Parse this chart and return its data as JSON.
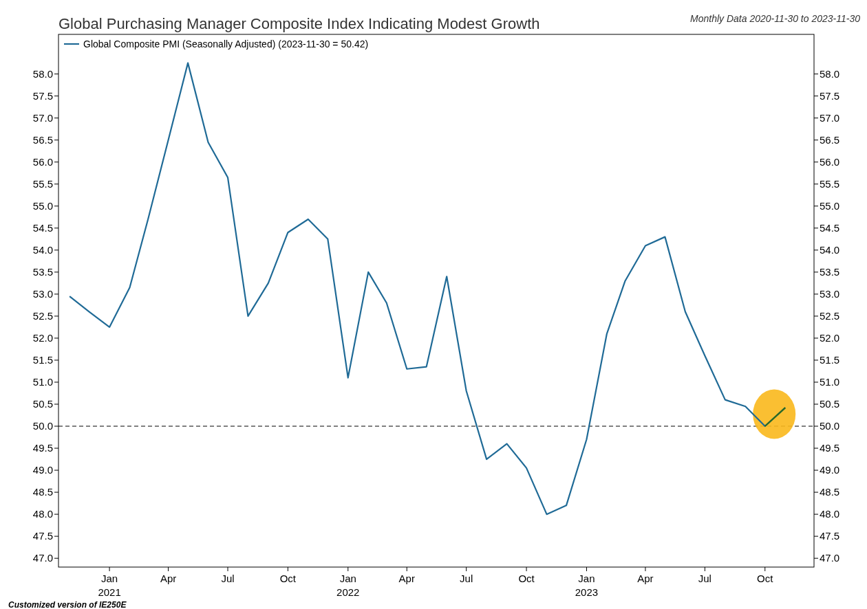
{
  "chart_data": {
    "type": "line",
    "title": "Global Purchasing Manager Composite Index Indicating Modest Growth",
    "subtitle": "Monthly Data 2020-11-30 to 2023-11-30",
    "x": [
      "2020-11",
      "2020-12",
      "2021-01",
      "2021-02",
      "2021-03",
      "2021-04",
      "2021-05",
      "2021-06",
      "2021-07",
      "2021-08",
      "2021-09",
      "2021-10",
      "2021-11",
      "2021-12",
      "2022-01",
      "2022-02",
      "2022-03",
      "2022-04",
      "2022-05",
      "2022-06",
      "2022-07",
      "2022-08",
      "2022-09",
      "2022-10",
      "2022-11",
      "2022-12",
      "2023-01",
      "2023-02",
      "2023-03",
      "2023-04",
      "2023-05",
      "2023-06",
      "2023-07",
      "2023-08",
      "2023-09",
      "2023-10",
      "2023-11"
    ],
    "series": [
      {
        "name": "Global Composite PMI (Seasonally Adjusted) (2023-11-30 = 50.42)",
        "color": "#1f6a96",
        "values": [
          52.95,
          52.6,
          52.25,
          53.15,
          54.7,
          56.5,
          58.25,
          56.45,
          55.65,
          52.5,
          53.25,
          54.4,
          54.7,
          54.25,
          51.1,
          53.5,
          52.8,
          51.3,
          51.35,
          53.4,
          50.8,
          49.25,
          49.6,
          49.05,
          48.0,
          48.2,
          49.7,
          52.1,
          53.3,
          54.1,
          54.3,
          52.6,
          51.6,
          50.6,
          50.45,
          50.0,
          50.42
        ]
      },
      {
        "color": "#2e6b1f",
        "x": [
          "2023-10",
          "2023-11"
        ],
        "values": [
          50.0,
          50.42
        ]
      }
    ],
    "xlim": [
      "2020-10-15",
      "2023-12-15"
    ],
    "xticks": [
      {
        "value": "2021-01",
        "label": "Jan\n2021"
      },
      {
        "value": "2021-04",
        "label": "Apr"
      },
      {
        "value": "2021-07",
        "label": "Jul"
      },
      {
        "value": "2021-10",
        "label": "Oct"
      },
      {
        "value": "2022-01",
        "label": "Jan\n2022"
      },
      {
        "value": "2022-04",
        "label": "Apr"
      },
      {
        "value": "2022-07",
        "label": "Jul"
      },
      {
        "value": "2022-10",
        "label": "Oct"
      },
      {
        "value": "2023-01",
        "label": "Jan\n2023"
      },
      {
        "value": "2023-04",
        "label": "Apr"
      },
      {
        "value": "2023-07",
        "label": "Jul"
      },
      {
        "value": "2023-10",
        "label": "Oct"
      }
    ],
    "ylim": [
      46.8,
      58.9
    ],
    "yticks": [
      {
        "value": 47,
        "label": "47.0"
      },
      {
        "value": 47.5,
        "label": "47.5"
      },
      {
        "value": 48,
        "label": "48.0"
      },
      {
        "value": 48.5,
        "label": "48.5"
      },
      {
        "value": 49,
        "label": "49.0"
      },
      {
        "value": 49.5,
        "label": "49.5"
      },
      {
        "value": 50,
        "label": "50.0"
      },
      {
        "value": 50.5,
        "label": "50.5"
      },
      {
        "value": 51,
        "label": "51.0"
      },
      {
        "value": 51.5,
        "label": "51.5"
      },
      {
        "value": 52,
        "label": "52.0"
      },
      {
        "value": 52.5,
        "label": "52.5"
      },
      {
        "value": 53,
        "label": "53.0"
      },
      {
        "value": 53.5,
        "label": "53.5"
      },
      {
        "value": 54,
        "label": "54.0"
      },
      {
        "value": 54.5,
        "label": "54.5"
      },
      {
        "value": 55,
        "label": "55.0"
      },
      {
        "value": 55.5,
        "label": "55.5"
      },
      {
        "value": 56,
        "label": "56.0"
      },
      {
        "value": 56.5,
        "label": "56.5"
      },
      {
        "value": 57,
        "label": "57.0"
      },
      {
        "value": 57.5,
        "label": "57.5"
      },
      {
        "value": 58,
        "label": "58.0"
      }
    ],
    "y2lim": [
      46.8,
      58.9
    ],
    "y2ticks": [
      {
        "value": 47,
        "label": "47.0"
      },
      {
        "value": 47.5,
        "label": "47.5"
      },
      {
        "value": 48,
        "label": "48.0"
      },
      {
        "value": 48.5,
        "label": "48.5"
      },
      {
        "value": 49,
        "label": "49.0"
      },
      {
        "value": 49.5,
        "label": "49.5"
      },
      {
        "value": 50,
        "label": "50.0"
      },
      {
        "value": 50.5,
        "label": "50.5"
      },
      {
        "value": 51,
        "label": "51.0"
      },
      {
        "value": 51.5,
        "label": "51.5"
      },
      {
        "value": 52,
        "label": "52.0"
      },
      {
        "value": 52.5,
        "label": "52.5"
      },
      {
        "value": 53,
        "label": "53.0"
      },
      {
        "value": 53.5,
        "label": "53.5"
      },
      {
        "value": 54,
        "label": "54.0"
      },
      {
        "value": 54.5,
        "label": "54.5"
      },
      {
        "value": 55,
        "label": "55.0"
      },
      {
        "value": 55.5,
        "label": "55.5"
      },
      {
        "value": 56,
        "label": "56.0"
      },
      {
        "value": 56.5,
        "label": "56.5"
      },
      {
        "value": 57,
        "label": "57.0"
      },
      {
        "value": 57.5,
        "label": "57.5"
      },
      {
        "value": 58,
        "label": "58.0"
      }
    ],
    "ref_lines": [
      {
        "axis": "y",
        "value": 50,
        "color": "#000000",
        "line_style": "dashed"
      }
    ],
    "annotations": [
      "Customized version of IE250E"
    ],
    "legend": "top left",
    "grid": false,
    "marker": "none",
    "line_style": "solid"
  }
}
